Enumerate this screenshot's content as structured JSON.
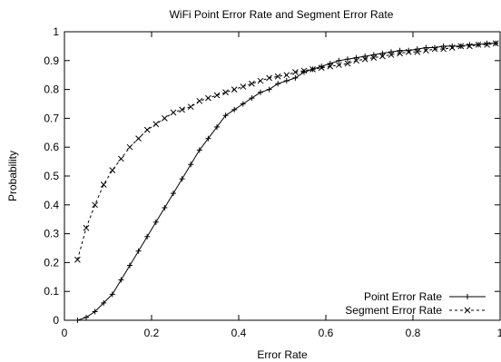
{
  "chart_data": {
    "type": "line",
    "title": "WiFi Point Error Rate and Segment Error Rate",
    "xlabel": "Error Rate",
    "ylabel": "Probability",
    "xlim": [
      0,
      1
    ],
    "ylim": [
      0,
      1
    ],
    "xticks": [
      "0",
      "0.2",
      "0.4",
      "0.6",
      "0.8",
      "1"
    ],
    "yticks": [
      "0",
      "0.1",
      "0.2",
      "0.3",
      "0.4",
      "0.5",
      "0.6",
      "0.7",
      "0.8",
      "0.9",
      "1"
    ],
    "grid": false,
    "legend_position": "bottom-right",
    "series": [
      {
        "name": "Point Error Rate",
        "line": "solid",
        "marker": "+",
        "x": [
          0.03,
          0.05,
          0.07,
          0.09,
          0.11,
          0.13,
          0.15,
          0.17,
          0.19,
          0.21,
          0.23,
          0.25,
          0.27,
          0.29,
          0.31,
          0.33,
          0.35,
          0.37,
          0.39,
          0.41,
          0.43,
          0.45,
          0.47,
          0.49,
          0.51,
          0.53,
          0.55,
          0.57,
          0.59,
          0.61,
          0.63,
          0.65,
          0.67,
          0.69,
          0.71,
          0.73,
          0.75,
          0.77,
          0.79,
          0.81,
          0.83,
          0.85,
          0.87,
          0.89,
          0.91,
          0.93,
          0.95,
          0.97,
          0.99
        ],
        "y": [
          0.0,
          0.01,
          0.03,
          0.06,
          0.09,
          0.14,
          0.19,
          0.24,
          0.29,
          0.34,
          0.39,
          0.44,
          0.49,
          0.54,
          0.59,
          0.63,
          0.67,
          0.71,
          0.73,
          0.75,
          0.77,
          0.79,
          0.8,
          0.82,
          0.83,
          0.84,
          0.86,
          0.87,
          0.88,
          0.89,
          0.9,
          0.905,
          0.91,
          0.915,
          0.92,
          0.925,
          0.93,
          0.935,
          0.935,
          0.94,
          0.945,
          0.945,
          0.95,
          0.95,
          0.95,
          0.955,
          0.955,
          0.96,
          0.96
        ]
      },
      {
        "name": "Segment Error Rate",
        "line": "dashed",
        "marker": "x",
        "x": [
          0.03,
          0.05,
          0.07,
          0.09,
          0.11,
          0.13,
          0.15,
          0.17,
          0.19,
          0.21,
          0.23,
          0.25,
          0.27,
          0.29,
          0.31,
          0.33,
          0.35,
          0.37,
          0.39,
          0.41,
          0.43,
          0.45,
          0.47,
          0.49,
          0.51,
          0.53,
          0.55,
          0.57,
          0.59,
          0.61,
          0.63,
          0.65,
          0.67,
          0.69,
          0.71,
          0.73,
          0.75,
          0.77,
          0.79,
          0.81,
          0.83,
          0.85,
          0.87,
          0.89,
          0.91,
          0.93,
          0.95,
          0.97,
          0.99
        ],
        "y": [
          0.21,
          0.32,
          0.4,
          0.47,
          0.52,
          0.56,
          0.6,
          0.63,
          0.66,
          0.68,
          0.7,
          0.72,
          0.73,
          0.74,
          0.76,
          0.77,
          0.78,
          0.79,
          0.8,
          0.81,
          0.82,
          0.83,
          0.84,
          0.845,
          0.85,
          0.86,
          0.865,
          0.87,
          0.875,
          0.88,
          0.885,
          0.89,
          0.9,
          0.905,
          0.91,
          0.915,
          0.92,
          0.925,
          0.93,
          0.93,
          0.935,
          0.94,
          0.94,
          0.945,
          0.95,
          0.95,
          0.955,
          0.955,
          0.96
        ]
      }
    ]
  }
}
